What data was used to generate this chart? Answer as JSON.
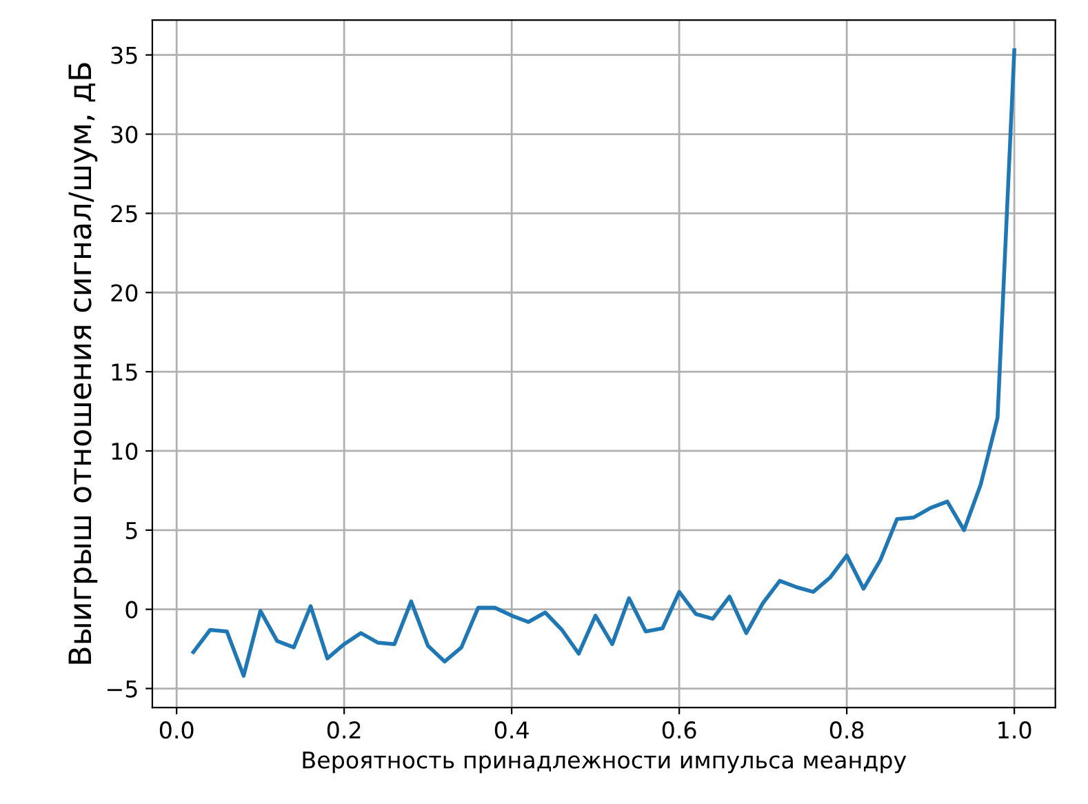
{
  "chart_data": {
    "type": "line",
    "xlabel": "Вероятность принадлежности импульса меандру",
    "ylabel": "Выигрыш отношения сигнал/шум, дБ",
    "x": [
      0.02,
      0.04,
      0.06,
      0.08,
      0.1,
      0.12,
      0.14,
      0.16,
      0.18,
      0.2,
      0.22,
      0.24,
      0.26,
      0.28,
      0.3,
      0.32,
      0.34,
      0.36,
      0.38,
      0.4,
      0.42,
      0.44,
      0.46,
      0.48,
      0.5,
      0.52,
      0.54,
      0.56,
      0.58,
      0.6,
      0.62,
      0.64,
      0.66,
      0.68,
      0.7,
      0.72,
      0.74,
      0.76,
      0.78,
      0.8,
      0.82,
      0.84,
      0.86,
      0.88,
      0.9,
      0.92,
      0.94,
      0.96,
      0.98,
      1.0
    ],
    "series": [
      {
        "color": "#1f77b4",
        "values": [
          -2.7,
          -1.3,
          -1.4,
          -4.2,
          -0.1,
          -2.0,
          -2.4,
          0.2,
          -3.1,
          -2.2,
          -1.5,
          -2.1,
          -2.2,
          0.5,
          -2.3,
          -3.3,
          -2.4,
          0.1,
          0.1,
          -0.4,
          -0.8,
          -0.2,
          -1.3,
          -2.8,
          -0.4,
          -2.2,
          0.7,
          -1.4,
          -1.2,
          1.1,
          -0.3,
          -0.6,
          0.8,
          -1.5,
          0.4,
          1.8,
          1.4,
          1.1,
          2.0,
          3.4,
          1.3,
          3.1,
          5.7,
          5.8,
          6.4,
          6.8,
          5.0,
          7.9,
          12.1,
          35.3
        ]
      }
    ],
    "xlim": [
      -0.029,
      1.049
    ],
    "ylim": [
      -6.2,
      37.2
    ],
    "xticks": [
      {
        "value": 0,
        "label": "0.0"
      },
      0.2,
      0.4,
      0.6,
      0.8,
      {
        "value": 1,
        "label": "1.0"
      }
    ],
    "yticks": [
      {
        "value": -5,
        "label": "−5"
      },
      0,
      5,
      10,
      15,
      20,
      25,
      30,
      35
    ],
    "grid": true,
    "marker": "none",
    "line_style": "solid"
  }
}
